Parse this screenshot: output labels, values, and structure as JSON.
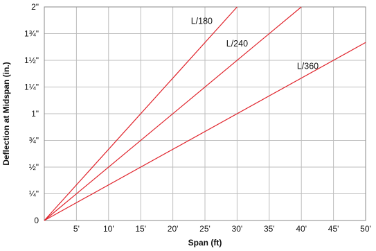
{
  "chart_data": {
    "type": "line",
    "xlabel": "Span (ft)",
    "ylabel": "Deflection at Midspan (in.)",
    "xlim": [
      0,
      50
    ],
    "ylim": [
      0,
      2
    ],
    "grid": true,
    "x_ticks": [
      {
        "value": 5,
        "label": "5'"
      },
      {
        "value": 10,
        "label": "10'"
      },
      {
        "value": 15,
        "label": "15'"
      },
      {
        "value": 20,
        "label": "20'"
      },
      {
        "value": 25,
        "label": "25'"
      },
      {
        "value": 30,
        "label": "30'"
      },
      {
        "value": 35,
        "label": "35'"
      },
      {
        "value": 40,
        "label": "40'"
      },
      {
        "value": 45,
        "label": "45'"
      },
      {
        "value": 50,
        "label": "50'"
      }
    ],
    "y_ticks": [
      {
        "value": 0,
        "label": "0"
      },
      {
        "value": 0.25,
        "label": "¼\""
      },
      {
        "value": 0.5,
        "label": "½\""
      },
      {
        "value": 0.75,
        "label": "¾\""
      },
      {
        "value": 1.0,
        "label": "1\""
      },
      {
        "value": 1.25,
        "label": "1¼\""
      },
      {
        "value": 1.5,
        "label": "1½\""
      },
      {
        "value": 1.75,
        "label": "1¾\""
      },
      {
        "value": 2.0,
        "label": "2\""
      }
    ],
    "series_color": "#e0232b",
    "series": [
      {
        "name": "L/180",
        "x": [
          0,
          30
        ],
        "y": [
          0,
          2.0
        ],
        "label_at": [
          24.5,
          1.84
        ]
      },
      {
        "name": "L/240",
        "x": [
          0,
          40
        ],
        "y": [
          0,
          2.0
        ],
        "label_at": [
          30,
          1.63
        ]
      },
      {
        "name": "L/360",
        "x": [
          0,
          50
        ],
        "y": [
          0,
          1.667
        ],
        "label_at": [
          41,
          1.42
        ]
      }
    ]
  }
}
